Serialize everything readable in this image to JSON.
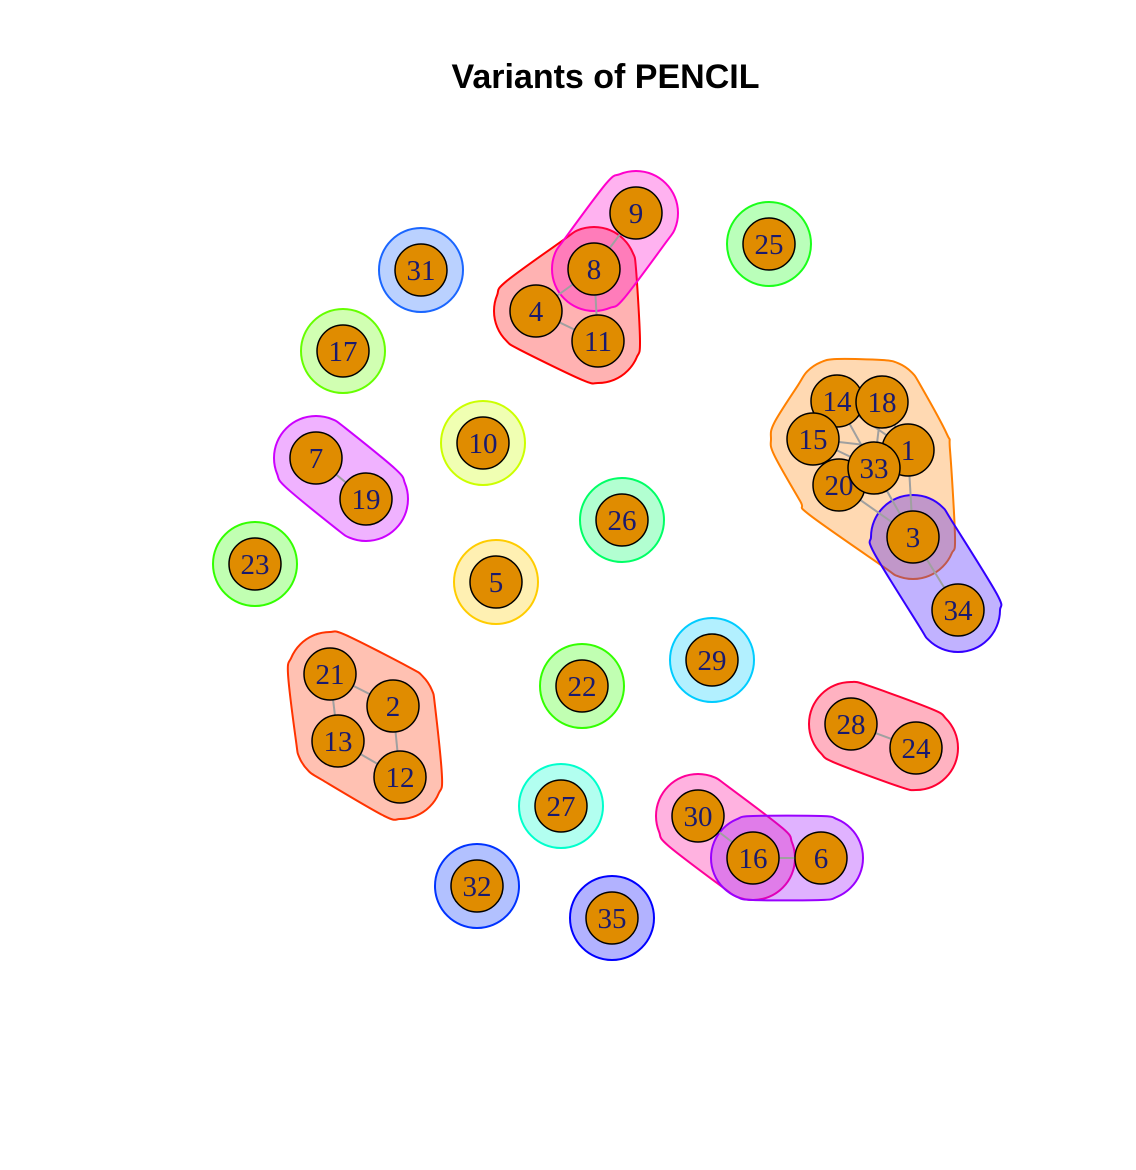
{
  "title": "Variants of PENCIL",
  "nodes": [
    {
      "id": "1"
    },
    {
      "id": "2"
    },
    {
      "id": "3"
    },
    {
      "id": "4"
    },
    {
      "id": "5"
    },
    {
      "id": "6"
    },
    {
      "id": "7"
    },
    {
      "id": "8"
    },
    {
      "id": "9"
    },
    {
      "id": "10"
    },
    {
      "id": "11"
    },
    {
      "id": "12"
    },
    {
      "id": "13"
    },
    {
      "id": "14"
    },
    {
      "id": "15"
    },
    {
      "id": "16"
    },
    {
      "id": "17"
    },
    {
      "id": "18"
    },
    {
      "id": "19"
    },
    {
      "id": "20"
    },
    {
      "id": "21"
    },
    {
      "id": "22"
    },
    {
      "id": "23"
    },
    {
      "id": "24"
    },
    {
      "id": "25"
    },
    {
      "id": "26"
    },
    {
      "id": "27"
    },
    {
      "id": "28"
    },
    {
      "id": "29"
    },
    {
      "id": "30"
    },
    {
      "id": "31"
    },
    {
      "id": "32"
    },
    {
      "id": "33"
    },
    {
      "id": "34"
    },
    {
      "id": "35"
    }
  ],
  "edges": [
    [
      "4",
      "8"
    ],
    [
      "4",
      "11"
    ],
    [
      "8",
      "11"
    ],
    [
      "8",
      "9"
    ],
    [
      "14",
      "18"
    ],
    [
      "14",
      "15"
    ],
    [
      "14",
      "33"
    ],
    [
      "14",
      "1"
    ],
    [
      "15",
      "18"
    ],
    [
      "15",
      "33"
    ],
    [
      "15",
      "20"
    ],
    [
      "15",
      "1"
    ],
    [
      "18",
      "33"
    ],
    [
      "18",
      "1"
    ],
    [
      "1",
      "33"
    ],
    [
      "20",
      "33"
    ],
    [
      "1",
      "3"
    ],
    [
      "33",
      "3"
    ],
    [
      "20",
      "3"
    ],
    [
      "3",
      "34"
    ],
    [
      "7",
      "19"
    ],
    [
      "21",
      "2"
    ],
    [
      "21",
      "13"
    ],
    [
      "13",
      "12"
    ],
    [
      "2",
      "12"
    ],
    [
      "28",
      "24"
    ],
    [
      "30",
      "16"
    ],
    [
      "16",
      "6"
    ]
  ],
  "groups": [
    {
      "members": [
        "4",
        "8",
        "11"
      ],
      "color": "#ff0000"
    },
    {
      "members": [
        "8",
        "9"
      ],
      "color": "#ff00cc"
    },
    {
      "members": [
        "25"
      ],
      "color": "#1aff1a"
    },
    {
      "members": [
        "31"
      ],
      "color": "#1a66ff"
    },
    {
      "members": [
        "17"
      ],
      "color": "#66ff00"
    },
    {
      "members": [
        "10"
      ],
      "color": "#ccff00"
    },
    {
      "members": [
        "7",
        "19"
      ],
      "color": "#cc00ff"
    },
    {
      "members": [
        "14",
        "18",
        "15",
        "1",
        "33",
        "20",
        "3"
      ],
      "color": "#ff8000"
    },
    {
      "members": [
        "3",
        "34"
      ],
      "color": "#3300ff"
    },
    {
      "members": [
        "26"
      ],
      "color": "#00ff66"
    },
    {
      "members": [
        "23"
      ],
      "color": "#33ff00"
    },
    {
      "members": [
        "5"
      ],
      "color": "#ffcc00"
    },
    {
      "members": [
        "21",
        "2",
        "13",
        "12"
      ],
      "color": "#ff3300"
    },
    {
      "members": [
        "22"
      ],
      "color": "#33ff00"
    },
    {
      "members": [
        "29"
      ],
      "color": "#00ccff"
    },
    {
      "members": [
        "28",
        "24"
      ],
      "color": "#ff0033"
    },
    {
      "members": [
        "27"
      ],
      "color": "#00ffcc"
    },
    {
      "members": [
        "30",
        "16"
      ],
      "color": "#ff0099"
    },
    {
      "members": [
        "16",
        "6"
      ],
      "color": "#9900ff"
    },
    {
      "members": [
        "32"
      ],
      "color": "#0033ff"
    },
    {
      "members": [
        "35"
      ],
      "color": "#0000ff"
    }
  ],
  "node_fill": "#e08c00",
  "edge_color": "#a0a0a0"
}
